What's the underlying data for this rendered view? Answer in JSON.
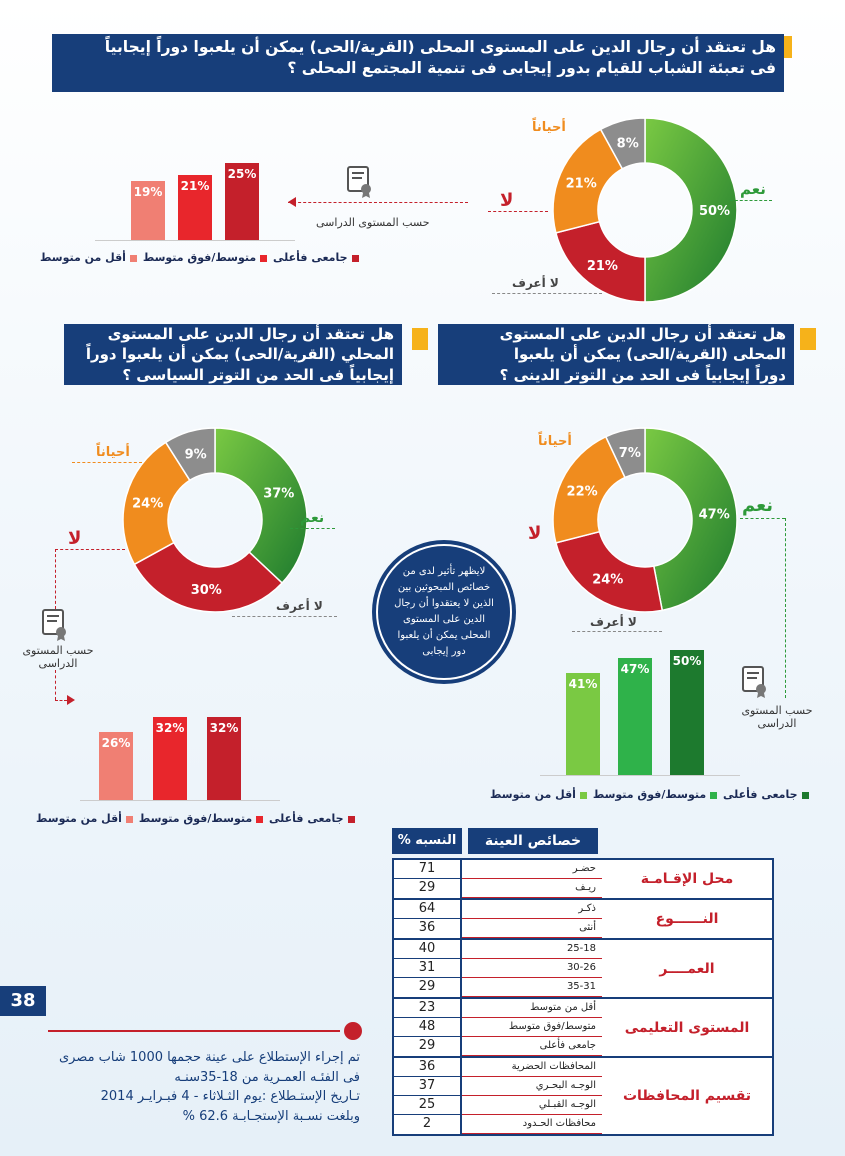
{
  "q1": {
    "lines": [
      "هل تعتقد أن رجال الدين على المستوى المحلى (القرية/الحى) يمكن أن يلعبوا دوراً إيجابياً",
      "فى تعبئة الشباب للقيام بدور إيجابى فى تنمية المجتمع المحلى ؟"
    ],
    "labels": {
      "yes": "نعم",
      "no": "لا",
      "sometimes": "أحياناً",
      "dont_know": "لا أعرف"
    },
    "by_education_label": "حسب المستوى الدراسى"
  },
  "q2": {
    "lines": [
      "هل تعتقد أن رجال الدين على المستوى",
      "المحلى (القرية/الحى) يمكن أن يلعبوا",
      "دوراً إيجابياً فى الحد من التوتر الدينى ؟"
    ],
    "labels": {
      "yes": "نعم",
      "no": "لا",
      "sometimes": "أحياناً",
      "dont_know": "لا أعرف"
    },
    "by_education_label": "حسب المستوى الدراسى"
  },
  "q3": {
    "lines": [
      "هل تعتقد أن رجال الدين على المستوى",
      "المحلي (القرية/الحى) يمكن أن يلعبوا دوراً",
      "إيجابياً فى الحد من التوتر السياسى ؟"
    ],
    "labels": {
      "yes": "نعم",
      "no": "لا",
      "sometimes": "أحياناً",
      "dont_know": "لا أعرف"
    },
    "by_education_label": "حسب المستوى الدراسى"
  },
  "balloon": "لايظهر تأثير لدى من خصائص المبحوثين بين الذين لا يعتقدوا أن رجال الدين على المستوى المحلى يمكن أن يلعبوا دور إيجابى",
  "legend": {
    "univ": "جامعى فأعلى",
    "mid": "متوسط/فوق متوسط",
    "low": "أقل من متوسط"
  },
  "colors": {
    "navy": "#173e7a",
    "yellow": "#f6b21a",
    "green": "#2e9a3a",
    "red": "#c4202b",
    "orange": "#f08c1e",
    "grey": "#8d8d8d"
  },
  "chart_data": [
    {
      "type": "pie",
      "id": "q1_donut",
      "labels": [
        "نعم",
        "لا",
        "أحياناً",
        "لا أعرف"
      ],
      "values": [
        50,
        21,
        21,
        8
      ]
    },
    {
      "type": "bar",
      "id": "q1_bars",
      "categories": [
        "جامعى فأعلى",
        "متوسط/فوق متوسط",
        "أقل من متوسط"
      ],
      "values": [
        25,
        21,
        19
      ]
    },
    {
      "type": "pie",
      "id": "q2_donut",
      "labels": [
        "نعم",
        "لا",
        "أحياناً",
        "لا أعرف"
      ],
      "values": [
        47,
        24,
        22,
        7
      ]
    },
    {
      "type": "bar",
      "id": "q2_bars",
      "categories": [
        "جامعى فأعلى",
        "متوسط/فوق متوسط",
        "أقل من متوسط"
      ],
      "values": [
        50,
        47,
        41
      ]
    },
    {
      "type": "pie",
      "id": "q3_donut",
      "labels": [
        "نعم",
        "لا",
        "أحياناً",
        "لا أعرف"
      ],
      "values": [
        37,
        30,
        24,
        9
      ]
    },
    {
      "type": "bar",
      "id": "q3_bars",
      "categories": [
        "جامعى فأعلى",
        "متوسط/فوق متوسط",
        "أقل من متوسط"
      ],
      "values": [
        32,
        32,
        26
      ]
    }
  ],
  "sample": {
    "title": "خصائص العينة",
    "pct_header": "النسبه %",
    "groups": [
      {
        "name": "محل الإقـامـة",
        "rows": [
          {
            "label": "حضـر",
            "value": "71"
          },
          {
            "label": "ريـف",
            "value": "29"
          }
        ]
      },
      {
        "name": "النــــــوع",
        "rows": [
          {
            "label": "ذكـر",
            "value": "64"
          },
          {
            "label": "أنثى",
            "value": "36"
          }
        ]
      },
      {
        "name": "العمــــر",
        "rows": [
          {
            "label": "25-18",
            "value": "40"
          },
          {
            "label": "30-26",
            "value": "31"
          },
          {
            "label": "35-31",
            "value": "29"
          }
        ]
      },
      {
        "name": "المستوى التعليمى",
        "rows": [
          {
            "label": "أقل من متوسط",
            "value": "23"
          },
          {
            "label": "متوسط/فوق متوسط",
            "value": "48"
          },
          {
            "label": "جامعى فأعلى",
            "value": "29"
          }
        ]
      },
      {
        "name": "تقسيم المحافظات",
        "rows": [
          {
            "label": "المحافظات الحضرية",
            "value": "36"
          },
          {
            "label": "الوجـه البحـري",
            "value": "37"
          },
          {
            "label": "الوجـه القبـلي",
            "value": "25"
          },
          {
            "label": "محافظات الحـدود",
            "value": "2"
          }
        ]
      }
    ]
  },
  "page_number": "38",
  "footer_lines": [
    "تم إجراء الإستطلاع على عينة حجمها 1000 شاب مصرى",
    "فى الفئـه العمـرية من 18-35سنـه",
    "تـاريخ الإستـطلاع :يوم الثـلاثاء - 4 فبـرايـر 2014",
    "وبلغت نسـبة الإستجـابـة 62.6 %"
  ]
}
